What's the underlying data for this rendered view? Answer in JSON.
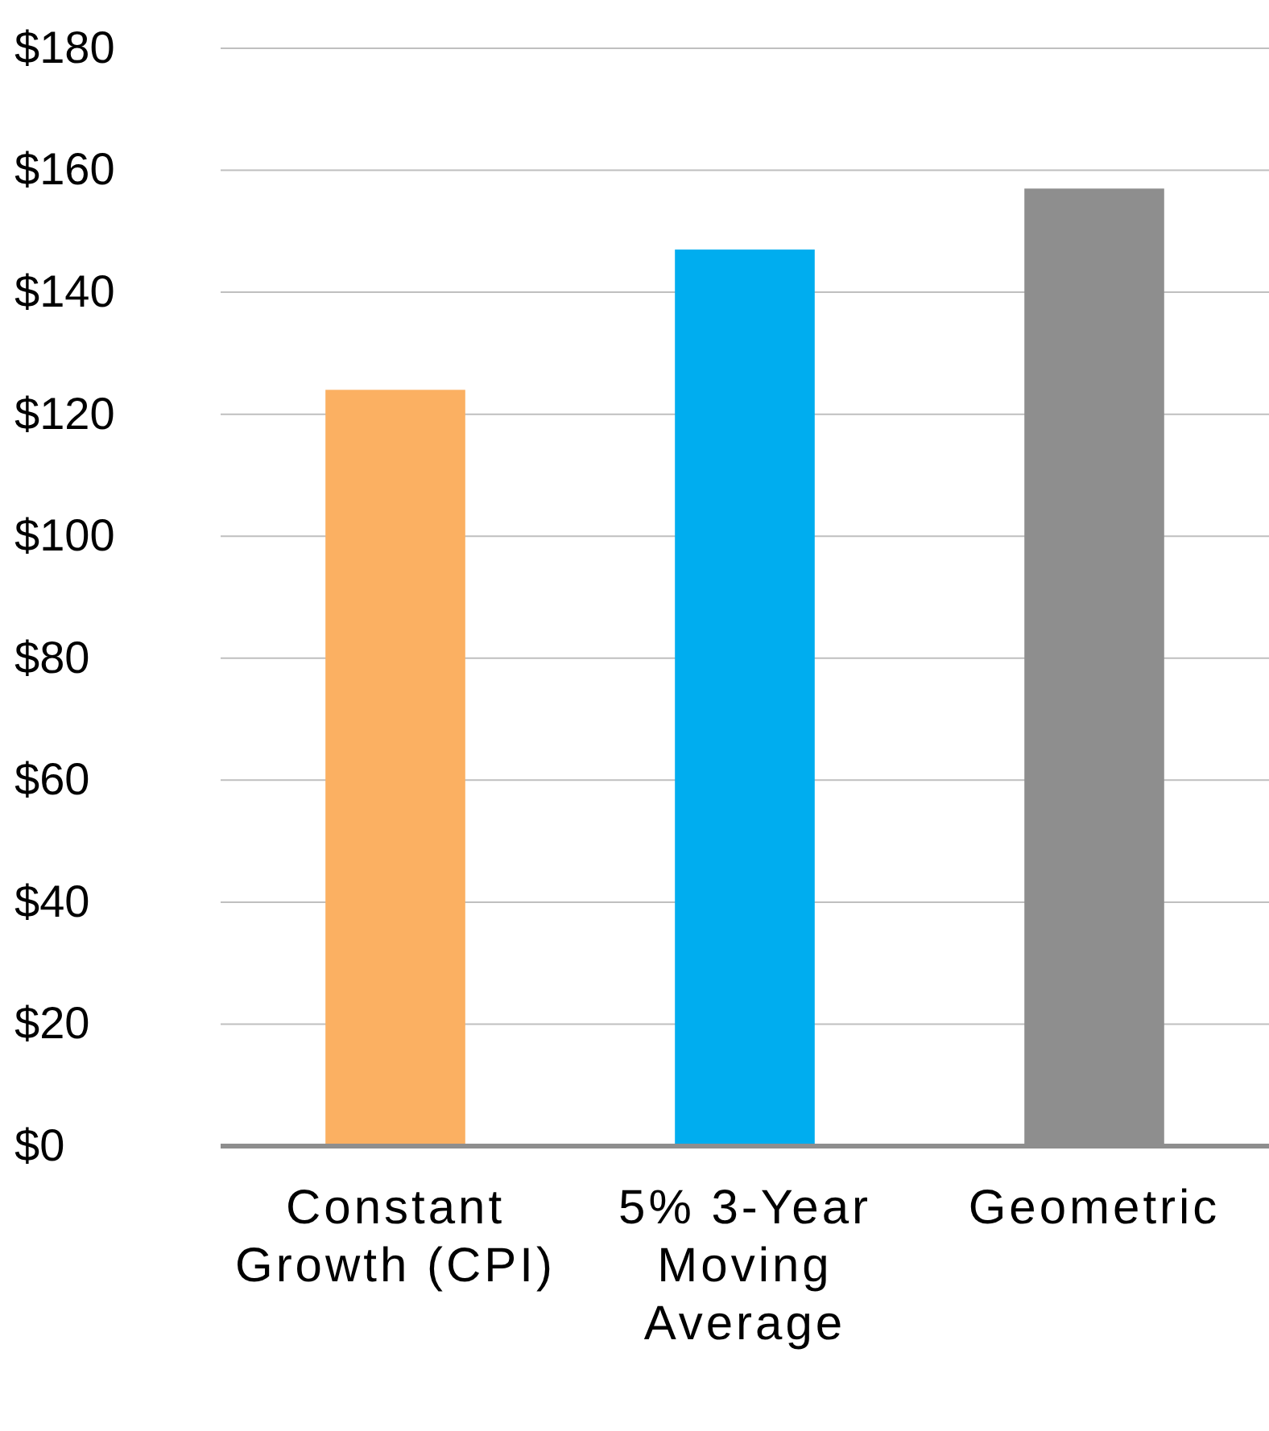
{
  "chart_data": {
    "type": "bar",
    "categories": [
      "Constant Growth (CPI)",
      "5% 3-Year Moving Average",
      "Geometric"
    ],
    "values": [
      124,
      147,
      157
    ],
    "colors": [
      "#fbb062",
      "#00adef",
      "#8e8e8e"
    ],
    "ylim": [
      0,
      180
    ],
    "yticks": [
      {
        "value": 0,
        "label": "$0"
      },
      {
        "value": 20,
        "label": "$20"
      },
      {
        "value": 40,
        "label": "$40"
      },
      {
        "value": 60,
        "label": "$60"
      },
      {
        "value": 80,
        "label": "$80"
      },
      {
        "value": 100,
        "label": "$100"
      },
      {
        "value": 120,
        "label": "$120"
      },
      {
        "value": 140,
        "label": "$140"
      },
      {
        "value": 160,
        "label": "$160"
      },
      {
        "value": 180,
        "label": "$180"
      }
    ],
    "grid": "y"
  }
}
